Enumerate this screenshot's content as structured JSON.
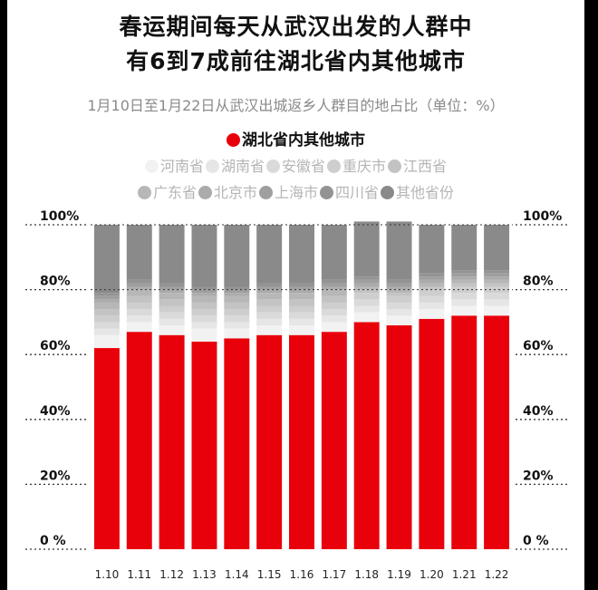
{
  "title_line1": "春运期间每天从武汉出发的人群中",
  "title_line2": "有6到7成前往湖北省内其他城市",
  "subtitle": "1月10日至1月22日从武汉出城返乡人群目的地占比（单位：%）",
  "legend": {
    "main": {
      "label": "湖北省内其他城市",
      "color": "#e8000b"
    },
    "row1": [
      {
        "label": "河南省",
        "color": "#f2f2f2"
      },
      {
        "label": "湖南省",
        "color": "#e6e6e6"
      },
      {
        "label": "安徽省",
        "color": "#dadada"
      },
      {
        "label": "重庆市",
        "color": "#cecece"
      },
      {
        "label": "江西省",
        "color": "#c3c3c3"
      }
    ],
    "row2": [
      {
        "label": "广东省",
        "color": "#b7b7b7"
      },
      {
        "label": "北京市",
        "color": "#ababab"
      },
      {
        "label": "上海市",
        "color": "#9f9f9f"
      },
      {
        "label": "四川省",
        "color": "#939393"
      },
      {
        "label": "其他省份",
        "color": "#8a8a8a"
      }
    ]
  },
  "chart_data": {
    "type": "bar",
    "stacked": true,
    "categories": [
      "1.10",
      "1.11",
      "1.12",
      "1.13",
      "1.14",
      "1.15",
      "1.16",
      "1.17",
      "1.18",
      "1.19",
      "1.20",
      "1.21",
      "1.22"
    ],
    "ylim": [
      0,
      100
    ],
    "yticks": [
      "100%",
      "80%",
      "60%",
      "40%",
      "20%",
      "0 %"
    ],
    "grid": true,
    "series": [
      {
        "name": "湖北省内其他城市",
        "color": "#e8000b",
        "values": [
          62,
          67,
          66,
          64,
          65,
          66,
          66,
          67,
          70,
          69,
          71,
          72,
          72
        ]
      },
      {
        "name": "河南省",
        "color": "#f2f2f2",
        "values": [
          4,
          3,
          3,
          4,
          3,
          3,
          3,
          3,
          3,
          3,
          3,
          3,
          3
        ]
      },
      {
        "name": "湖南省",
        "color": "#e6e6e6",
        "values": [
          2,
          2,
          2,
          2,
          2,
          2,
          2,
          2,
          2,
          2,
          2,
          2,
          2
        ]
      },
      {
        "name": "安徽省",
        "color": "#dadada",
        "values": [
          2,
          2,
          2,
          2,
          2,
          2,
          2,
          2,
          2,
          2,
          2,
          2,
          2
        ]
      },
      {
        "name": "重庆市",
        "color": "#cecece",
        "values": [
          2,
          2,
          2,
          2,
          2,
          2,
          2,
          2,
          2,
          2,
          2,
          2,
          2
        ]
      },
      {
        "name": "江西省",
        "color": "#c3c3c3",
        "values": [
          2,
          2,
          2,
          2,
          2,
          2,
          2,
          2,
          1,
          1,
          1,
          1,
          1
        ]
      },
      {
        "name": "广东省",
        "color": "#b7b7b7",
        "values": [
          2,
          2,
          2,
          2,
          2,
          2,
          2,
          2,
          1,
          1,
          1,
          1,
          1
        ]
      },
      {
        "name": "北京市",
        "color": "#ababab",
        "values": [
          1,
          1,
          1,
          1,
          1,
          1,
          1,
          1,
          1,
          1,
          1,
          1,
          1
        ]
      },
      {
        "name": "上海市",
        "color": "#9f9f9f",
        "values": [
          1,
          1,
          1,
          1,
          1,
          1,
          1,
          1,
          1,
          1,
          1,
          1,
          1
        ]
      },
      {
        "name": "四川省",
        "color": "#939393",
        "values": [
          1,
          1,
          1,
          1,
          1,
          1,
          1,
          1,
          1,
          1,
          1,
          1,
          1
        ]
      },
      {
        "name": "其他省份",
        "color": "#8a8a8a",
        "values": [
          21,
          17,
          18,
          19,
          19,
          18,
          18,
          17,
          17,
          18,
          15,
          14,
          14
        ]
      }
    ]
  }
}
